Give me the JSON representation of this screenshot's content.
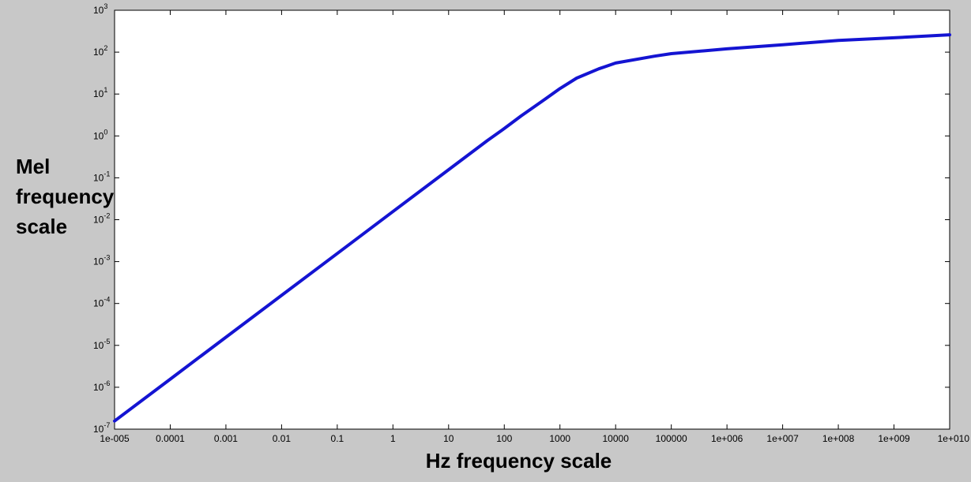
{
  "chart_data": {
    "type": "line",
    "title": "",
    "xlabel": "Hz frequency scale",
    "ylabel_lines": [
      "Mel",
      "frequency",
      "scale"
    ],
    "x_scale": "log",
    "y_scale": "log",
    "xlim": [
      1e-05,
      10000000000
    ],
    "ylim": [
      1e-07,
      1000
    ],
    "x_tick_labels": [
      "1e-005",
      "0.0001",
      "0.001",
      "0.01",
      "0.1",
      "1",
      "10",
      "100",
      "1000",
      "10000",
      "100000",
      "1e+006",
      "1e+007",
      "1e+008",
      "1e+009",
      "1e+010"
    ],
    "y_tick_exponents": [
      "-7",
      "-6",
      "-5",
      "-4",
      "-3",
      "-2",
      "-1",
      "0",
      "1",
      "2",
      "3"
    ],
    "y_tick_base": "10",
    "grid": false,
    "series": [
      {
        "color": "#1414d2",
        "x": [
          1e-05,
          0.0001,
          0.001,
          0.01,
          0.1,
          1,
          10,
          50,
          100,
          200,
          500,
          1000,
          2000,
          5000,
          10000,
          50000,
          100000,
          1000000,
          10000000,
          100000000,
          1000000000,
          10000000000
        ],
        "y": [
          1.56e-07,
          1.56e-06,
          1.56e-05,
          0.000156,
          0.00156,
          0.0156,
          0.156,
          0.78,
          1.5,
          3.0,
          7.0,
          13.5,
          24,
          40,
          55,
          80,
          92,
          120,
          150,
          190,
          220,
          260
        ]
      }
    ]
  }
}
